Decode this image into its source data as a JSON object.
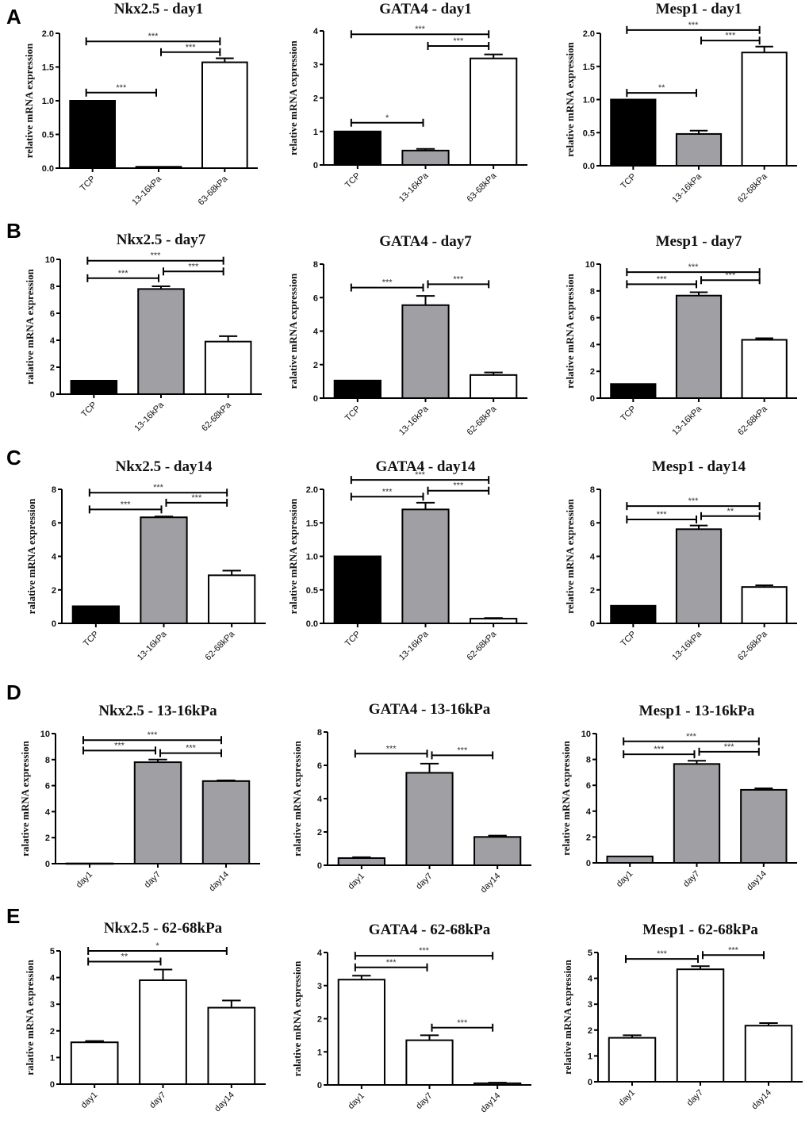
{
  "figure": {
    "panel_letters": [
      "A",
      "B",
      "C",
      "D",
      "E"
    ],
    "colors": {
      "TCP": "#000000",
      "soft": "#a0a0a4",
      "stiff": "#ffffff",
      "stroke": "#000000"
    }
  },
  "chart_data": [
    {
      "id": "A1",
      "panel": "A",
      "type": "bar",
      "title": "Nkx2.5 - day1",
      "ylabel": "relative mRNA expression",
      "categories": [
        "TCP",
        "13-16kPa",
        "63-68kPa"
      ],
      "values": [
        1.0,
        0.02,
        1.57
      ],
      "errors": [
        0.0,
        0.0,
        0.06
      ],
      "fills": [
        "TCP",
        "soft",
        "stiff"
      ],
      "ylim": [
        0,
        2.0
      ],
      "yticks": [
        "0.0",
        "0.5",
        "1.0",
        "1.5",
        "2.0"
      ],
      "ytick_values": [
        0,
        0.5,
        1.0,
        1.5,
        2.0
      ],
      "significance": [
        {
          "from": 0,
          "to": 2,
          "label": "***",
          "level": 1.88
        },
        {
          "from": 1,
          "to": 2,
          "label": "***",
          "level": 1.72
        },
        {
          "from": 0,
          "to": 1,
          "label": "***",
          "level": 1.12
        }
      ]
    },
    {
      "id": "A2",
      "panel": "A",
      "type": "bar",
      "title": "GATA4 - day1",
      "ylabel": "relative mRNA expression",
      "categories": [
        "TCP",
        "13-16kPa",
        "63-68kPa"
      ],
      "values": [
        1.0,
        0.43,
        3.18
      ],
      "errors": [
        0.0,
        0.05,
        0.12
      ],
      "fills": [
        "TCP",
        "soft",
        "stiff"
      ],
      "ylim": [
        0,
        4
      ],
      "yticks": [
        "0",
        "1",
        "2",
        "3",
        "4"
      ],
      "ytick_values": [
        0,
        1,
        2,
        3,
        4
      ],
      "significance": [
        {
          "from": 0,
          "to": 2,
          "label": "***",
          "level": 3.9
        },
        {
          "from": 1,
          "to": 2,
          "label": "***",
          "level": 3.55
        },
        {
          "from": 0,
          "to": 1,
          "label": "*",
          "level": 1.26
        }
      ]
    },
    {
      "id": "A3",
      "panel": "A",
      "type": "bar",
      "title": "Mesp1 - day1",
      "ylabel": "relative mRNA expression",
      "categories": [
        "TCP",
        "13-16kPa",
        "62-68kPa"
      ],
      "values": [
        1.0,
        0.48,
        1.71
      ],
      "errors": [
        0.0,
        0.05,
        0.09
      ],
      "fills": [
        "TCP",
        "soft",
        "stiff"
      ],
      "ylim": [
        0,
        2.0
      ],
      "yticks": [
        "0.0",
        "0.5",
        "1.0",
        "1.5",
        "2.0"
      ],
      "ytick_values": [
        0,
        0.5,
        1.0,
        1.5,
        2.0
      ],
      "significance": [
        {
          "from": 0,
          "to": 2,
          "label": "***",
          "level": 2.05
        },
        {
          "from": 1,
          "to": 2,
          "label": "***",
          "level": 1.89
        },
        {
          "from": 0,
          "to": 1,
          "label": "**",
          "level": 1.1
        }
      ]
    },
    {
      "id": "B1",
      "panel": "B",
      "type": "bar",
      "title": "Nkx2.5 - day7",
      "ylabel": "ralative mRNA expression",
      "categories": [
        "TCP",
        "13-16kPa",
        "62-68kPa"
      ],
      "values": [
        1.0,
        7.8,
        3.9
      ],
      "errors": [
        0.0,
        0.2,
        0.4
      ],
      "fills": [
        "TCP",
        "soft",
        "stiff"
      ],
      "ylim": [
        0,
        10
      ],
      "yticks": [
        "0",
        "2",
        "4",
        "6",
        "8",
        "10"
      ],
      "ytick_values": [
        0,
        2,
        4,
        6,
        8,
        10
      ],
      "significance": [
        {
          "from": 0,
          "to": 2,
          "label": "***",
          "level": 9.9
        },
        {
          "from": 1,
          "to": 2,
          "label": "***",
          "level": 9.1
        },
        {
          "from": 0,
          "to": 1,
          "label": "***",
          "level": 8.6
        }
      ]
    },
    {
      "id": "B2",
      "panel": "B",
      "type": "bar",
      "title": "GATA4 - day7",
      "ylabel": "ralative mRNA expression",
      "categories": [
        "TCP",
        "13-16kPa",
        "62-68kPa"
      ],
      "values": [
        1.05,
        5.55,
        1.38
      ],
      "errors": [
        0.0,
        0.55,
        0.15
      ],
      "fills": [
        "TCP",
        "soft",
        "stiff"
      ],
      "ylim": [
        0,
        8
      ],
      "yticks": [
        "0",
        "2",
        "4",
        "6",
        "8"
      ],
      "ytick_values": [
        0,
        2,
        4,
        6,
        8
      ],
      "significance": [
        {
          "from": 0,
          "to": 1,
          "label": "***",
          "level": 6.6
        },
        {
          "from": 1,
          "to": 2,
          "label": "***",
          "level": 6.8
        }
      ]
    },
    {
      "id": "B3",
      "panel": "B",
      "type": "bar",
      "title": "Mesp1 - day7",
      "ylabel": "relative mRNA expression",
      "categories": [
        "TCP",
        "13-16kPa",
        "62-68kPa"
      ],
      "values": [
        1.05,
        7.65,
        4.35
      ],
      "errors": [
        0.0,
        0.25,
        0.12
      ],
      "fills": [
        "TCP",
        "soft",
        "stiff"
      ],
      "ylim": [
        0,
        10
      ],
      "yticks": [
        "0",
        "2",
        "4",
        "6",
        "8",
        "10"
      ],
      "ytick_values": [
        0,
        2,
        4,
        6,
        8,
        10
      ],
      "significance": [
        {
          "from": 0,
          "to": 2,
          "label": "***",
          "level": 9.4
        },
        {
          "from": 1,
          "to": 2,
          "label": "***",
          "level": 8.8
        },
        {
          "from": 0,
          "to": 1,
          "label": "***",
          "level": 8.5
        }
      ]
    },
    {
      "id": "C1",
      "panel": "C",
      "type": "bar",
      "title": "Nkx2.5 - day14",
      "ylabel": "ralative mRNA expression",
      "categories": [
        "TCP",
        "13-16kPa",
        "62-68kPa"
      ],
      "values": [
        1.02,
        6.33,
        2.87
      ],
      "errors": [
        0.0,
        0.05,
        0.28
      ],
      "fills": [
        "TCP",
        "soft",
        "stiff"
      ],
      "ylim": [
        0,
        8
      ],
      "yticks": [
        "0",
        "2",
        "4",
        "6",
        "8"
      ],
      "ytick_values": [
        0,
        2,
        4,
        6,
        8
      ],
      "significance": [
        {
          "from": 0,
          "to": 2,
          "label": "***",
          "level": 7.8
        },
        {
          "from": 1,
          "to": 2,
          "label": "***",
          "level": 7.2
        },
        {
          "from": 0,
          "to": 1,
          "label": "***",
          "level": 6.8
        }
      ]
    },
    {
      "id": "C2",
      "panel": "C",
      "type": "bar",
      "title": "GATA4 - day14",
      "ylabel": "ralative mRNA expression",
      "categories": [
        "TCP",
        "13-16kPa",
        "62-68kPa"
      ],
      "values": [
        1.0,
        1.7,
        0.07
      ],
      "errors": [
        0.0,
        0.1,
        0.01
      ],
      "fills": [
        "TCP",
        "soft",
        "stiff"
      ],
      "ylim": [
        0,
        2.0
      ],
      "yticks": [
        "0.0",
        "0.5",
        "1.0",
        "1.5",
        "2.0"
      ],
      "ytick_values": [
        0,
        0.5,
        1.0,
        1.5,
        2.0
      ],
      "significance": [
        {
          "from": 0,
          "to": 2,
          "label": "***",
          "level": 2.14
        },
        {
          "from": 1,
          "to": 2,
          "label": "***",
          "level": 1.98
        },
        {
          "from": 0,
          "to": 1,
          "label": "***",
          "level": 1.89
        }
      ]
    },
    {
      "id": "C3",
      "panel": "C",
      "type": "bar",
      "title": "Mesp1 - day14",
      "ylabel": "relative mRNA expression",
      "categories": [
        "TCP",
        "13-16kPa",
        "62-68kPa"
      ],
      "values": [
        1.05,
        5.62,
        2.17
      ],
      "errors": [
        0.0,
        0.22,
        0.1
      ],
      "fills": [
        "TCP",
        "soft",
        "stiff"
      ],
      "ylim": [
        0,
        8
      ],
      "yticks": [
        "0",
        "2",
        "4",
        "6",
        "8"
      ],
      "ytick_values": [
        0,
        2,
        4,
        6,
        8
      ],
      "significance": [
        {
          "from": 0,
          "to": 2,
          "label": "***",
          "level": 7.0
        },
        {
          "from": 1,
          "to": 2,
          "label": "**",
          "level": 6.4
        },
        {
          "from": 0,
          "to": 1,
          "label": "***",
          "level": 6.2
        }
      ]
    },
    {
      "id": "D1",
      "panel": "D",
      "type": "bar",
      "title": "Nkx2.5 - 13-16kPa",
      "ylabel": "ralative mRNA expression",
      "categories": [
        "day1",
        "day7",
        "day14"
      ],
      "values": [
        0.02,
        7.8,
        6.35
      ],
      "errors": [
        0.0,
        0.2,
        0.05
      ],
      "fills": [
        "soft",
        "soft",
        "soft"
      ],
      "ylim": [
        0,
        10
      ],
      "yticks": [
        "0",
        "2",
        "4",
        "6",
        "8",
        "10"
      ],
      "ytick_values": [
        0,
        2,
        4,
        6,
        8,
        10
      ],
      "significance": [
        {
          "from": 0,
          "to": 2,
          "label": "***",
          "level": 9.5
        },
        {
          "from": 1,
          "to": 2,
          "label": "***",
          "level": 8.5
        },
        {
          "from": 0,
          "to": 1,
          "label": "***",
          "level": 8.7
        }
      ]
    },
    {
      "id": "D2",
      "panel": "D",
      "type": "bar",
      "title": "GATA4 - 13-16kPa",
      "ylabel": "ralative mRNA expression",
      "categories": [
        "day1",
        "day7",
        "day14"
      ],
      "values": [
        0.43,
        5.55,
        1.7
      ],
      "errors": [
        0.05,
        0.55,
        0.08
      ],
      "fills": [
        "soft",
        "soft",
        "soft"
      ],
      "ylim": [
        0,
        8
      ],
      "yticks": [
        "0",
        "2",
        "4",
        "6",
        "8"
      ],
      "ytick_values": [
        0,
        2,
        4,
        6,
        8
      ],
      "significance": [
        {
          "from": 0,
          "to": 1,
          "label": "***",
          "level": 6.7
        },
        {
          "from": 1,
          "to": 2,
          "label": "***",
          "level": 6.6
        }
      ]
    },
    {
      "id": "D3",
      "panel": "D",
      "type": "bar",
      "title": "Mesp1 - 13-16kPa",
      "ylabel": "relative mRNA expression",
      "categories": [
        "day1",
        "day7",
        "day14"
      ],
      "values": [
        0.5,
        7.65,
        5.65
      ],
      "errors": [
        0.0,
        0.25,
        0.12
      ],
      "fills": [
        "soft",
        "soft",
        "soft"
      ],
      "ylim": [
        0,
        10
      ],
      "yticks": [
        "0",
        "2",
        "4",
        "6",
        "8",
        "10"
      ],
      "ytick_values": [
        0,
        2,
        4,
        6,
        8,
        10
      ],
      "significance": [
        {
          "from": 0,
          "to": 2,
          "label": "***",
          "level": 9.4
        },
        {
          "from": 1,
          "to": 2,
          "label": "***",
          "level": 8.6
        },
        {
          "from": 0,
          "to": 1,
          "label": "***",
          "level": 8.4
        }
      ]
    },
    {
      "id": "E1",
      "panel": "E",
      "type": "bar",
      "title": "Nkx2.5 - 62-68kPa",
      "ylabel": "ralative mRNA expression",
      "categories": [
        "day1",
        "day7",
        "day14"
      ],
      "values": [
        1.57,
        3.9,
        2.87
      ],
      "errors": [
        0.05,
        0.4,
        0.27
      ],
      "fills": [
        "stiff",
        "stiff",
        "stiff"
      ],
      "ylim": [
        0,
        5
      ],
      "yticks": [
        "0",
        "1",
        "2",
        "3",
        "4",
        "5"
      ],
      "ytick_values": [
        0,
        1,
        2,
        3,
        4,
        5
      ],
      "significance": [
        {
          "from": 0,
          "to": 2,
          "label": "*",
          "level": 5.0
        },
        {
          "from": 0,
          "to": 1,
          "label": "**",
          "level": 4.6
        }
      ]
    },
    {
      "id": "E2",
      "panel": "E",
      "type": "bar",
      "title": "GATA4 - 62-68kPa",
      "ylabel": "ralative mRNA expression",
      "categories": [
        "day1",
        "day7",
        "day14"
      ],
      "values": [
        3.18,
        1.35,
        0.05
      ],
      "errors": [
        0.12,
        0.15,
        0.02
      ],
      "fills": [
        "stiff",
        "stiff",
        "stiff"
      ],
      "ylim": [
        0,
        4
      ],
      "yticks": [
        "0",
        "1",
        "2",
        "3",
        "4"
      ],
      "ytick_values": [
        0,
        1,
        2,
        3,
        4
      ],
      "significance": [
        {
          "from": 0,
          "to": 2,
          "label": "***",
          "level": 3.9
        },
        {
          "from": 0,
          "to": 1,
          "label": "***",
          "level": 3.55
        },
        {
          "from": 1,
          "to": 2,
          "label": "***",
          "level": 1.73
        }
      ]
    },
    {
      "id": "E3",
      "panel": "E",
      "type": "bar",
      "title": "Mesp1 - 62-68kPa",
      "ylabel": "relative mRNA expression",
      "categories": [
        "day1",
        "day7",
        "day14"
      ],
      "values": [
        1.7,
        4.35,
        2.17
      ],
      "errors": [
        0.1,
        0.12,
        0.1
      ],
      "fills": [
        "stiff",
        "stiff",
        "stiff"
      ],
      "ylim": [
        0,
        5
      ],
      "yticks": [
        "0",
        "1",
        "2",
        "3",
        "4",
        "5"
      ],
      "ytick_values": [
        0,
        1,
        2,
        3,
        4,
        5
      ],
      "significance": [
        {
          "from": 0,
          "to": 1,
          "label": "***",
          "level": 4.75
        },
        {
          "from": 1,
          "to": 2,
          "label": "***",
          "level": 4.9
        }
      ]
    }
  ]
}
